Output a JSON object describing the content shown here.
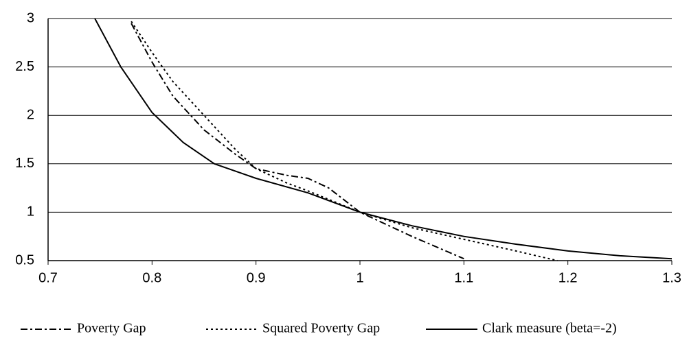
{
  "chart_data": {
    "type": "line",
    "xlim": [
      0.7,
      1.3
    ],
    "xticks": [
      0.7,
      0.8,
      0.9,
      1,
      1.1,
      1.2,
      1.3
    ],
    "ylim": [
      0.5,
      3
    ],
    "yticks": [
      0.5,
      1,
      1.5,
      2,
      2.5,
      3
    ],
    "grid": true,
    "series": [
      {
        "name": "Poverty Gap",
        "color": "#000000",
        "dash": "dashdot",
        "x": [
          0.78,
          0.8,
          0.82,
          0.85,
          0.88,
          0.9,
          0.93,
          0.95,
          0.97,
          1.0,
          1.05,
          1.1
        ],
        "values": [
          2.95,
          2.55,
          2.2,
          1.85,
          1.6,
          1.45,
          1.38,
          1.35,
          1.25,
          1.0,
          0.75,
          0.52
        ]
      },
      {
        "name": "Squared Poverty Gap",
        "color": "#000000",
        "dash": "dot",
        "x": [
          0.78,
          0.8,
          0.82,
          0.85,
          0.88,
          0.9,
          0.93,
          0.95,
          1.0,
          1.05,
          1.1,
          1.15,
          1.19
        ],
        "values": [
          2.97,
          2.65,
          2.35,
          2.0,
          1.65,
          1.45,
          1.3,
          1.22,
          1.0,
          0.84,
          0.72,
          0.6,
          0.5
        ]
      },
      {
        "name": "Clark measure (beta=-2)",
        "color": "#000000",
        "dash": "solid",
        "x": [
          0.745,
          0.77,
          0.8,
          0.83,
          0.86,
          0.9,
          0.95,
          1.0,
          1.05,
          1.1,
          1.15,
          1.2,
          1.25,
          1.3
        ],
        "values": [
          3,
          2.5,
          2.03,
          1.72,
          1.5,
          1.35,
          1.2,
          1.0,
          0.86,
          0.75,
          0.67,
          0.6,
          0.55,
          0.52
        ]
      }
    ]
  }
}
